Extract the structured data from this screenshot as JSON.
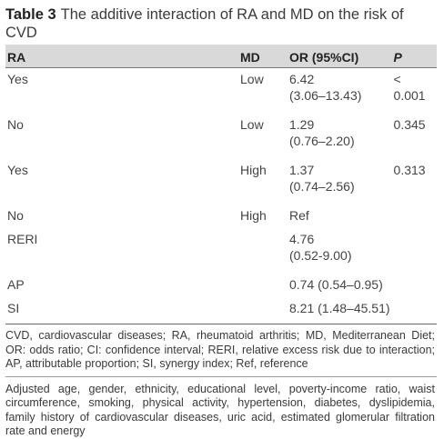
{
  "caption": {
    "label": "Table 3",
    "text": "The additive interaction of RA and MD on the risk of CVD"
  },
  "table": {
    "headers": {
      "ra": "RA",
      "md": "MD",
      "or": "OR (95%CI)",
      "p": "P"
    },
    "rows": [
      {
        "ra": "Yes",
        "md": "Low",
        "or_main": "6.42",
        "or_ci": "(3.06–13.43)",
        "p": "< 0.001"
      },
      {
        "ra": "No",
        "md": "Low",
        "or_main": "1.29",
        "or_ci": "(0.76–2.20)",
        "p": "0.345"
      },
      {
        "ra": "Yes",
        "md": "High",
        "or_main": "1.37",
        "or_ci": "(0.74–2.56)",
        "p": "0.313"
      },
      {
        "ra": "No",
        "md": "High",
        "or_main": "Ref",
        "or_ci": "",
        "p": ""
      },
      {
        "ra": "RERI",
        "md": "",
        "or_main": "4.76",
        "or_ci": "(0.52-9.00)",
        "p": ""
      },
      {
        "ra": "AP",
        "md": "",
        "or_main": "0.74 (0.54–0.95)",
        "or_ci": "",
        "p": ""
      },
      {
        "ra": "SI",
        "md": "",
        "or_main": "8.21 (1.48–45.51)",
        "or_ci": "",
        "p": ""
      }
    ]
  },
  "footnotes": {
    "abbreviations": "CVD, cardiovascular diseases; RA, rheumatoid arthritis; MD, Mediterranean Diet; OR: odds ratio; CI: confidence interval; RERI, relative excess risk due to interaction; AP, attributable proportion; SI, synergy index; Ref, reference",
    "adjustment": "Adjusted age, gender, ethnicity, educational level, poverty-income ratio, waist circumference, smoking, physical activity, hypertension, diabetes, dyslipidemia, family history of cardiovascular diseases, uric acid, estimated glomerular filtration rate and energy"
  }
}
